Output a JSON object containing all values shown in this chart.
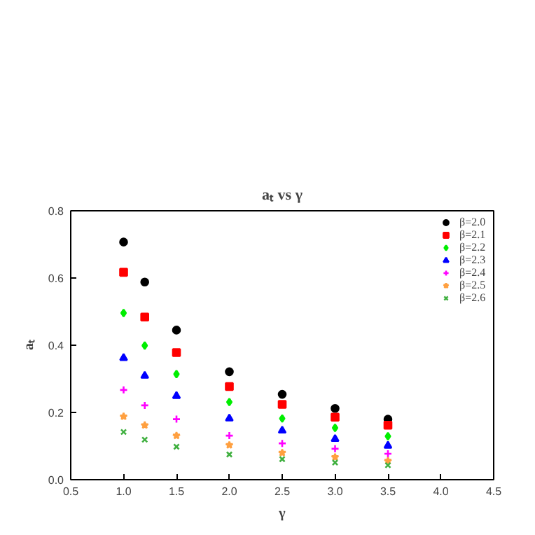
{
  "chart_data": {
    "type": "scatter",
    "title": "aₜ vs γ",
    "xlabel": "γ",
    "ylabel": "aₜ",
    "x": [
      1.0,
      1.2,
      1.5,
      2.0,
      2.5,
      3.0,
      3.5
    ],
    "series": [
      {
        "name": "β=2.0",
        "color": "#000000",
        "marker": "circle",
        "values": [
          0.707,
          0.588,
          0.445,
          0.321,
          0.254,
          0.212,
          0.18
        ]
      },
      {
        "name": "β=2.1",
        "color": "#ff0000",
        "marker": "square",
        "values": [
          0.617,
          0.484,
          0.378,
          0.277,
          0.224,
          0.186,
          0.162
        ]
      },
      {
        "name": "β=2.2",
        "color": "#00ee00",
        "marker": "diamond",
        "values": [
          0.496,
          0.399,
          0.314,
          0.231,
          0.182,
          0.154,
          0.129
        ]
      },
      {
        "name": "β=2.3",
        "color": "#0000ff",
        "marker": "triangle",
        "values": [
          0.362,
          0.309,
          0.249,
          0.182,
          0.146,
          0.121,
          0.101
        ]
      },
      {
        "name": "β=2.4",
        "color": "#ff00ff",
        "marker": "cross",
        "values": [
          0.267,
          0.221,
          0.18,
          0.131,
          0.108,
          0.092,
          0.077
        ]
      },
      {
        "name": "β=2.5",
        "color": "#ffa040",
        "marker": "star",
        "values": [
          0.188,
          0.162,
          0.131,
          0.103,
          0.08,
          0.067,
          0.056
        ]
      },
      {
        "name": "β=2.6",
        "color": "#40b040",
        "marker": "x",
        "values": [
          0.142,
          0.119,
          0.098,
          0.075,
          0.061,
          0.051,
          0.043
        ]
      }
    ],
    "xlim": [
      0.5,
      4.5
    ],
    "ylim": [
      0.0,
      0.8
    ],
    "xticks": [
      0.5,
      {
        "value": 1.0,
        "label": "1.0"
      },
      1.5,
      {
        "value": 2.0,
        "label": "2.0"
      },
      2.5,
      {
        "value": 3.0,
        "label": "3.0"
      },
      3.5,
      {
        "value": 4.0,
        "label": "4.0"
      },
      4.5
    ],
    "yticks": [
      {
        "value": 0.0,
        "label": "0.0"
      },
      0.2,
      0.4,
      0.6,
      0.8
    ],
    "legend": "top right",
    "grid": false
  }
}
